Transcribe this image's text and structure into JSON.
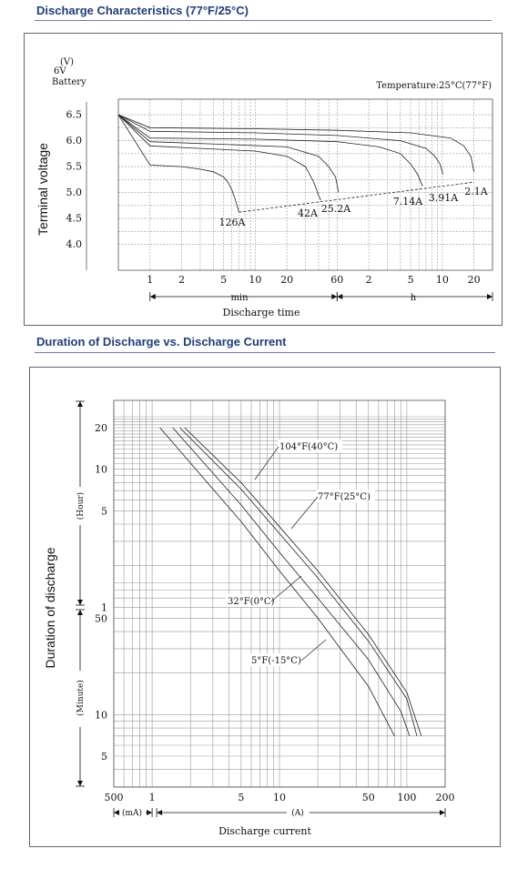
{
  "sections": {
    "top_title": "Discharge Characteristics (77°F/25°C)",
    "bottom_title": "Duration of Discharge vs. Discharge Current"
  },
  "colors": {
    "title": "#1f3f7a",
    "rule": "#6d7fa3",
    "grid": "#999999",
    "curve": "#222222"
  },
  "chart_data": [
    {
      "type": "line",
      "ylabel": "Terminal voltage",
      "yunit_lines": [
        "(V)",
        "6V",
        "Battery"
      ],
      "annotation": "Temperature:25°C(77°F)",
      "xlabel": "Discharge time",
      "x_unit_min": "min",
      "x_unit_h": "h",
      "ylim": [
        3.5,
        6.8
      ],
      "yticks": [
        "6.5",
        "6.0",
        "5.5",
        "5.0",
        "4.5",
        "4.0"
      ],
      "xticks_min": [
        "1",
        "2",
        "5",
        "10",
        "20",
        "60"
      ],
      "xticks_h": [
        "2",
        "5",
        "10",
        "20"
      ],
      "grid": true,
      "series": [
        {
          "name": "126A",
          "x_min": [
            0.5,
            1,
            2,
            3,
            4,
            5,
            5.5,
            6,
            6.5,
            7
          ],
          "y": [
            6.5,
            5.53,
            5.5,
            5.45,
            5.4,
            5.3,
            5.2,
            5.05,
            4.85,
            4.62
          ]
        },
        {
          "name": "42A",
          "x_min": [
            0.5,
            1,
            3,
            10,
            20,
            30,
            36,
            40,
            42
          ],
          "y": [
            6.5,
            5.9,
            5.85,
            5.8,
            5.7,
            5.5,
            5.2,
            4.95,
            4.85
          ]
        },
        {
          "name": "25.2A",
          "x_min": [
            0.5,
            1,
            5,
            20,
            40,
            50,
            58,
            62
          ],
          "y": [
            6.5,
            5.98,
            5.93,
            5.88,
            5.7,
            5.5,
            5.3,
            5.0
          ]
        },
        {
          "name": "7.14A",
          "x_min": [
            0.5,
            1,
            10,
            60,
            150,
            240,
            300,
            350,
            390
          ],
          "y": [
            6.5,
            6.05,
            6.03,
            5.98,
            5.88,
            5.75,
            5.55,
            5.35,
            5.12
          ]
        },
        {
          "name": "3.91A",
          "x_min": [
            0.5,
            1,
            10,
            60,
            240,
            420,
            510,
            570,
            610
          ],
          "y": [
            6.5,
            6.18,
            6.15,
            6.1,
            6.0,
            5.85,
            5.7,
            5.55,
            5.35
          ]
        },
        {
          "name": "2.1A",
          "x_min": [
            0.5,
            1,
            10,
            60,
            300,
            720,
            960,
            1120,
            1200
          ],
          "y": [
            6.5,
            6.25,
            6.23,
            6.2,
            6.15,
            6.05,
            5.9,
            5.7,
            5.4
          ]
        }
      ],
      "end_voltage_line": {
        "x_min": [
          7,
          1200
        ],
        "y": [
          4.62,
          5.2
        ]
      }
    },
    {
      "type": "line",
      "ylabel": "Duration of discharge",
      "xlabel": "Discharge current",
      "y_unit_h": "(Hour)",
      "y_unit_min": "(Minute)",
      "x_unit_ma": "(mA)",
      "x_unit_a": "(A)",
      "xticks": [
        "500",
        "1",
        "5",
        "10",
        "50",
        "100",
        "200"
      ],
      "yticks_h": [
        "20",
        "10",
        "5",
        "1"
      ],
      "yticks_min": [
        "50",
        "10",
        "5"
      ],
      "grid": true,
      "series": [
        {
          "name": "104°F(40°C)",
          "current_A": [
            1.8,
            5,
            10,
            20,
            50,
            100,
            130
          ],
          "duration_min": [
            1200,
            480,
            230,
            110,
            38,
            14.5,
            7
          ]
        },
        {
          "name": "77°F(25°C)",
          "current_A": [
            1.65,
            5,
            10,
            20,
            50,
            100,
            120
          ],
          "duration_min": [
            1200,
            430,
            205,
            98,
            34,
            13,
            7
          ]
        },
        {
          "name": "32°F(0°C)",
          "current_A": [
            1.45,
            5,
            10,
            20,
            50,
            90,
            105
          ],
          "duration_min": [
            1200,
            330,
            150,
            70,
            25,
            10.5,
            7
          ]
        },
        {
          "name": "5°F(-15°C)",
          "current_A": [
            1.15,
            5,
            10,
            20,
            50,
            80
          ],
          "duration_min": [
            1200,
            250,
            110,
            50,
            16,
            7
          ]
        }
      ]
    }
  ]
}
